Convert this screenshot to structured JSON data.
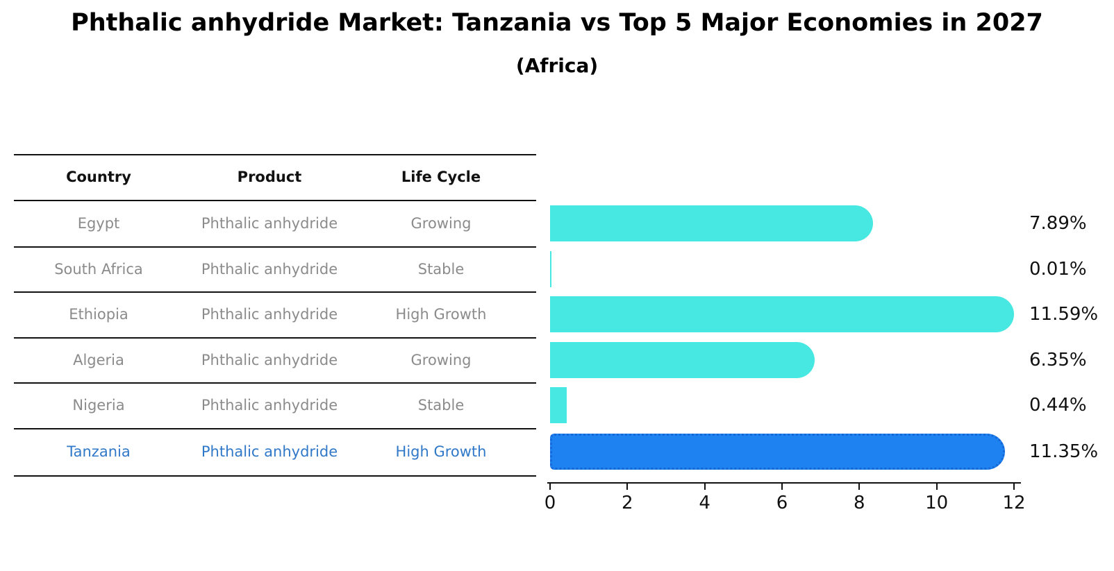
{
  "title": "Phthalic anhydride Market: Tanzania vs Top 5 Major Economies in 2027",
  "subtitle": "(Africa)",
  "table": {
    "headers": [
      "Country",
      "Product",
      "Life Cycle"
    ],
    "rows": [
      {
        "country": "Egypt",
        "product": "Phthalic anhydride",
        "life_cycle": "Growing",
        "highlighted": false
      },
      {
        "country": "South Africa",
        "product": "Phthalic anhydride",
        "life_cycle": "Stable",
        "highlighted": false
      },
      {
        "country": "Ethiopia",
        "product": "Phthalic anhydride",
        "life_cycle": "High Growth",
        "highlighted": false
      },
      {
        "country": "Algeria",
        "product": "Phthalic anhydride",
        "life_cycle": "Growing",
        "highlighted": false
      },
      {
        "country": "Nigeria",
        "product": "Phthalic anhydride",
        "life_cycle": "Stable",
        "highlighted": false
      },
      {
        "country": "Tanzania",
        "product": "Phthalic anhydride",
        "life_cycle": "High Growth",
        "highlighted": true
      }
    ]
  },
  "chart_data": {
    "type": "bar",
    "orientation": "horizontal",
    "categories": [
      "Egypt",
      "South Africa",
      "Ethiopia",
      "Algeria",
      "Nigeria",
      "Tanzania"
    ],
    "values": [
      7.89,
      0.01,
      11.59,
      6.35,
      0.44,
      11.35
    ],
    "value_labels": [
      "7.89%",
      "0.01%",
      "11.59%",
      "6.35%",
      "0.44%",
      "11.35%"
    ],
    "x_ticks": [
      0,
      2,
      4,
      6,
      8,
      10,
      12
    ],
    "xlim": [
      0,
      12
    ],
    "grid": false,
    "legend": "none",
    "highlight_category": "Tanzania",
    "colors": {
      "bar": "#46e8e1",
      "highlight_bar": "#1e82f0",
      "highlight_bar_border": "#1668d8",
      "highlight_text": "#3078c8",
      "row_text": "#8b8b8b",
      "header_text": "#111111",
      "axis": "#111111"
    }
  }
}
